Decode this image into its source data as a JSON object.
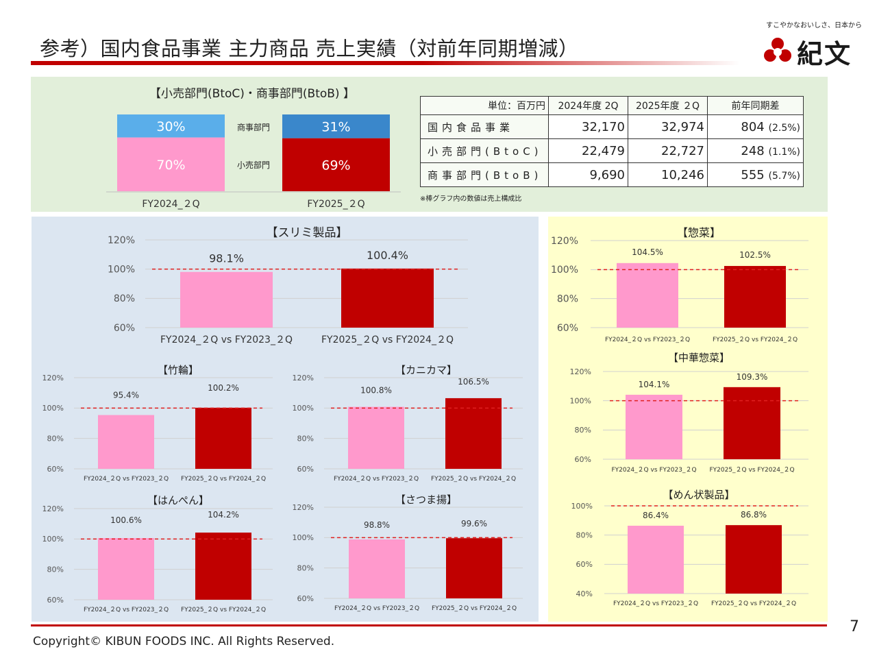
{
  "header": {
    "title": "参考）国内食品事業 主力商品 売上実績（対前年同期増減）",
    "tagline": "すこやかなおいしさ、日本から",
    "logo_text": "紀文"
  },
  "footer": {
    "copyright": "Copyright©  KIBUN FOODS INC. All Rights Reserved.",
    "page_number": "7"
  },
  "colors": {
    "pink": "#ff99cc",
    "red": "#c00000",
    "light_blue": "#5aaeea",
    "blue": "#3a87cb",
    "dash": "#e02020"
  },
  "composition": {
    "title": "【小売部門(BtoC)・商事部門(BtoB) 】",
    "segment_labels": [
      "商事部門",
      "小売部門"
    ],
    "bars": [
      {
        "category": "FY2024_２Q",
        "btob": 30,
        "btoc": 70,
        "btob_label": "30%",
        "btoc_label": "70%"
      },
      {
        "category": "FY2025_２Q",
        "btob": 31,
        "btoc": 69,
        "btob_label": "31%",
        "btoc_label": "69%"
      }
    ],
    "note": "※棒グラフ内の数値は売上構成比"
  },
  "table": {
    "unit": "単位：百万円",
    "headers": [
      "2024年度 2Q",
      "2025年度 ２Q",
      "前年同期差"
    ],
    "rows": [
      {
        "name": "国内食品事業",
        "v2024": "32,170",
        "v2025": "32,974",
        "diff": "804",
        "pct": "(2.5%)"
      },
      {
        "name": "小売部門(BtoC)",
        "v2024": "22,479",
        "v2025": "22,727",
        "diff": "248",
        "pct": "(1.1%)"
      },
      {
        "name": "商事部門(BtoB)",
        "v2024": "9,690",
        "v2025": "10,246",
        "diff": "555",
        "pct": "(5.7%)"
      }
    ]
  },
  "chart_data": [
    {
      "id": "surimi",
      "type": "bar",
      "title": "【スリミ製品】",
      "categories": [
        "FY2024_２Q vs FY2023_２Q",
        "FY2025_２Q vs FY2024_２Q"
      ],
      "values": [
        98.1,
        100.4
      ],
      "value_labels": [
        "98.1%",
        "100.4%"
      ],
      "yticks": [
        "60%",
        "80%",
        "100%",
        "120%"
      ],
      "ylim": [
        60,
        120
      ],
      "reference_line": 100
    },
    {
      "id": "chikuwa",
      "type": "bar",
      "title": "【竹輪】",
      "categories": [
        "FY2024_２Q vs FY2023_２Q",
        "FY2025_２Q vs FY2024_２Q"
      ],
      "values": [
        95.4,
        100.2
      ],
      "value_labels": [
        "95.4%",
        "100.2%"
      ],
      "yticks": [
        "60%",
        "80%",
        "100%",
        "120%"
      ],
      "ylim": [
        60,
        120
      ],
      "reference_line": 100
    },
    {
      "id": "kanikama",
      "type": "bar",
      "title": "【カニカマ】",
      "categories": [
        "FY2024_２Q vs FY2023_２Q",
        "FY2025_２Q vs FY2024_２Q"
      ],
      "values": [
        100.8,
        106.5
      ],
      "value_labels": [
        "100.8%",
        "106.5%"
      ],
      "yticks": [
        "60%",
        "80%",
        "100%",
        "120%"
      ],
      "ylim": [
        60,
        120
      ],
      "reference_line": 100
    },
    {
      "id": "hanpen",
      "type": "bar",
      "title": "【はんぺん】",
      "categories": [
        "FY2024_２Q vs FY2023_２Q",
        "FY2025_２Q vs FY2024_２Q"
      ],
      "values": [
        100.6,
        104.2
      ],
      "value_labels": [
        "100.6%",
        "104.2%"
      ],
      "yticks": [
        "60%",
        "80%",
        "100%",
        "120%"
      ],
      "ylim": [
        60,
        120
      ],
      "reference_line": 100
    },
    {
      "id": "satsumaage",
      "type": "bar",
      "title": "【さつま揚】",
      "categories": [
        "FY2024_２Q vs FY2023_２Q",
        "FY2025_２Q vs FY2024_２Q"
      ],
      "values": [
        98.8,
        99.6
      ],
      "value_labels": [
        "98.8%",
        "99.6%"
      ],
      "yticks": [
        "60%",
        "80%",
        "100%",
        "120%"
      ],
      "ylim": [
        60,
        120
      ],
      "reference_line": 100
    },
    {
      "id": "sozai",
      "type": "bar",
      "title": "【惣菜】",
      "categories": [
        "FY2024_２Q vs FY2023_２Q",
        "FY2025_２Q vs FY2024_２Q"
      ],
      "values": [
        104.5,
        102.5
      ],
      "value_labels": [
        "104.5%",
        "102.5%"
      ],
      "yticks": [
        "60%",
        "80%",
        "100%",
        "120%"
      ],
      "ylim": [
        60,
        120
      ],
      "reference_line": 100
    },
    {
      "id": "chuka",
      "type": "bar",
      "title": "【中華惣菜】",
      "categories": [
        "FY2024_２Q vs FY2023_２Q",
        "FY2025_２Q vs FY2024_２Q"
      ],
      "values": [
        104.1,
        109.3
      ],
      "value_labels": [
        "104.1%",
        "109.3%"
      ],
      "yticks": [
        "60%",
        "80%",
        "100%",
        "120%"
      ],
      "ylim": [
        60,
        120
      ],
      "reference_line": 100
    },
    {
      "id": "men",
      "type": "bar",
      "title": "【めん状製品】",
      "categories": [
        "FY2024_２Q vs FY2023_２Q",
        "FY2025_２Q vs FY2024_２Q"
      ],
      "values": [
        86.4,
        86.8
      ],
      "value_labels": [
        "86.4%",
        "86.8%"
      ],
      "yticks": [
        "40%",
        "60%",
        "80%",
        "100%"
      ],
      "ylim": [
        40,
        100
      ],
      "reference_line": 100
    }
  ]
}
